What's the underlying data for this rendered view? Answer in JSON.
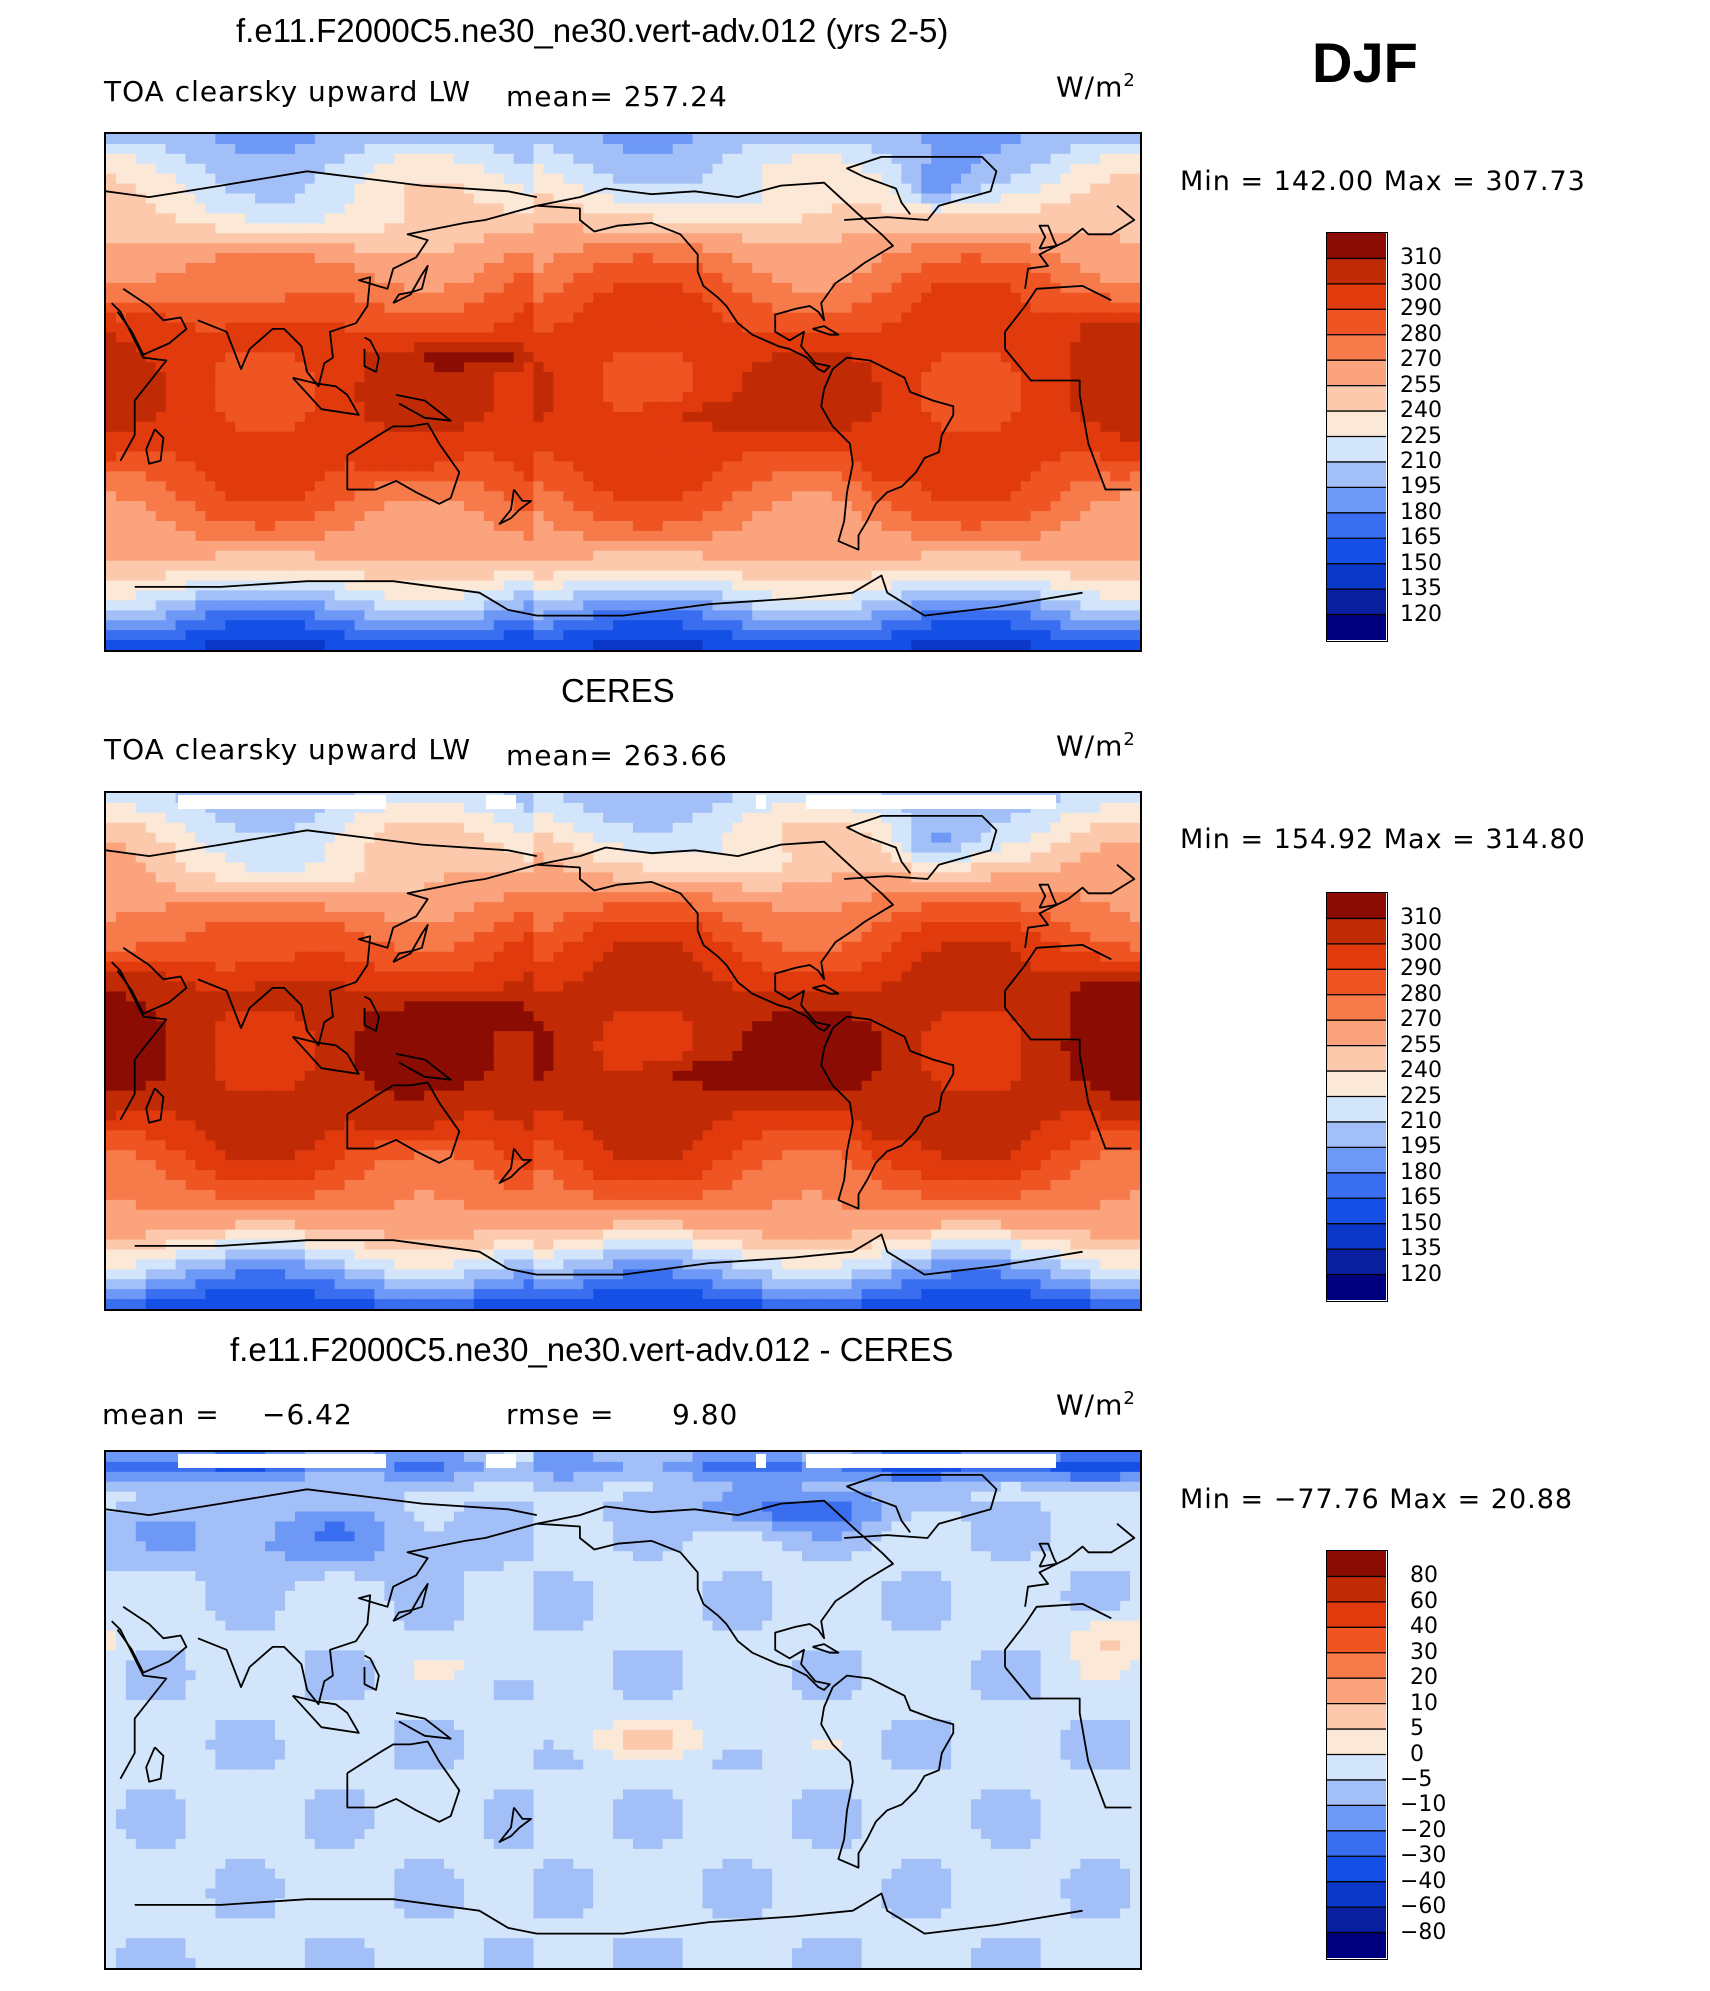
{
  "page": {
    "season": "DJF"
  },
  "panels": [
    {
      "title": "f.e11.F2000C5.ne30_ne30.vert-adv.012 (yrs 2-5)",
      "left_label": "TOA clearsky upward LW",
      "mean_label": "mean=",
      "mean_value": "257.24",
      "units_base": "W/m",
      "units_exp": "2",
      "minmax": "Min  =  142.00  Max  =  307.73",
      "colorbar_labels": [
        "310",
        "300",
        "290",
        "280",
        "270",
        "255",
        "240",
        "225",
        "210",
        "195",
        "180",
        "165",
        "150",
        "135",
        "120"
      ]
    },
    {
      "title": "CERES",
      "left_label": "TOA clearsky upward LW",
      "mean_label": "mean=",
      "mean_value": "263.66",
      "units_base": "W/m",
      "units_exp": "2",
      "minmax": "Min  =  154.92  Max  =  314.80",
      "colorbar_labels": [
        "310",
        "300",
        "290",
        "280",
        "270",
        "255",
        "240",
        "225",
        "210",
        "195",
        "180",
        "165",
        "150",
        "135",
        "120"
      ]
    },
    {
      "title": "f.e11.F2000C5.ne30_ne30.vert-adv.012 - CERES",
      "left_label": "mean  =",
      "mean_value": "−6.42",
      "rmse_label": "rmse  =",
      "rmse_value": "9.80",
      "units_base": "W/m",
      "units_exp": "2",
      "minmax": "Min  =  −77.76  Max  =    20.88",
      "colorbar_labels": [
        "80",
        "60",
        "40",
        "30",
        "20",
        "10",
        "5",
        "0",
        "−5",
        "−10",
        "−20",
        "−30",
        "−40",
        "−60",
        "−80"
      ]
    }
  ],
  "chart_data": [
    {
      "type": "heatmap",
      "title": "f.e11.F2000C5.ne30_ne30.vert-adv.012 (yrs 2-5)",
      "variable": "TOA clearsky upward LW",
      "units": "W/m2",
      "mean": 257.24,
      "min": 142.0,
      "max": 307.73,
      "levels": [
        120,
        135,
        150,
        165,
        180,
        195,
        210,
        225,
        240,
        255,
        270,
        280,
        290,
        300,
        310
      ],
      "colormap": [
        "#00007f",
        "#0a1ea0",
        "#0b37c8",
        "#1450e6",
        "#3a6ef0",
        "#6e98f5",
        "#a2c0f7",
        "#d3e5fa",
        "#fbe8d6",
        "#fcc9ac",
        "#fba37c",
        "#f77a4a",
        "#ef5423",
        "#e03a0d",
        "#c02a05",
        "#8a0c02"
      ],
      "colormap_scale": "data-scaled, lowest level at index 1",
      "map_intensity": 1.0
    },
    {
      "type": "heatmap",
      "title": "CERES",
      "variable": "TOA clearsky upward LW",
      "units": "W/m2",
      "mean": 263.66,
      "min": 154.92,
      "max": 314.8,
      "levels": [
        120,
        135,
        150,
        165,
        180,
        195,
        210,
        225,
        240,
        255,
        270,
        280,
        290,
        300,
        310
      ],
      "colormap": [
        "#00007f",
        "#0a1ea0",
        "#0b37c8",
        "#1450e6",
        "#3a6ef0",
        "#6e98f5",
        "#a2c0f7",
        "#d3e5fa",
        "#fbe8d6",
        "#fcc9ac",
        "#fba37c",
        "#f77a4a",
        "#ef5423",
        "#e03a0d",
        "#c02a05",
        "#8a0c02"
      ],
      "colormap_scale": "data-scaled, lowest level at index 1",
      "map_intensity": 1.06
    },
    {
      "type": "heatmap",
      "title": "f.e11.F2000C5.ne30_ne30.vert-adv.012 - CERES",
      "units": "W/m2",
      "mean": -6.42,
      "rmse": 9.8,
      "min": -77.76,
      "max": 20.88,
      "levels": [
        -80,
        -60,
        -40,
        -30,
        -20,
        -10,
        -5,
        0,
        5,
        10,
        20,
        30,
        40,
        60,
        80
      ],
      "colormap": [
        "#00007f",
        "#0a1ea0",
        "#0b37c8",
        "#1450e6",
        "#3a6ef0",
        "#6e98f5",
        "#a2c0f7",
        "#d3e5fa",
        "#fbe8d6",
        "#fcc9ac",
        "#fba37c",
        "#f77a4a",
        "#ef5423",
        "#e03a0d",
        "#c02a05",
        "#8a0c02"
      ],
      "colormap_scale": "diverging, mostly negative differences",
      "map_intensity": 0.0
    }
  ]
}
